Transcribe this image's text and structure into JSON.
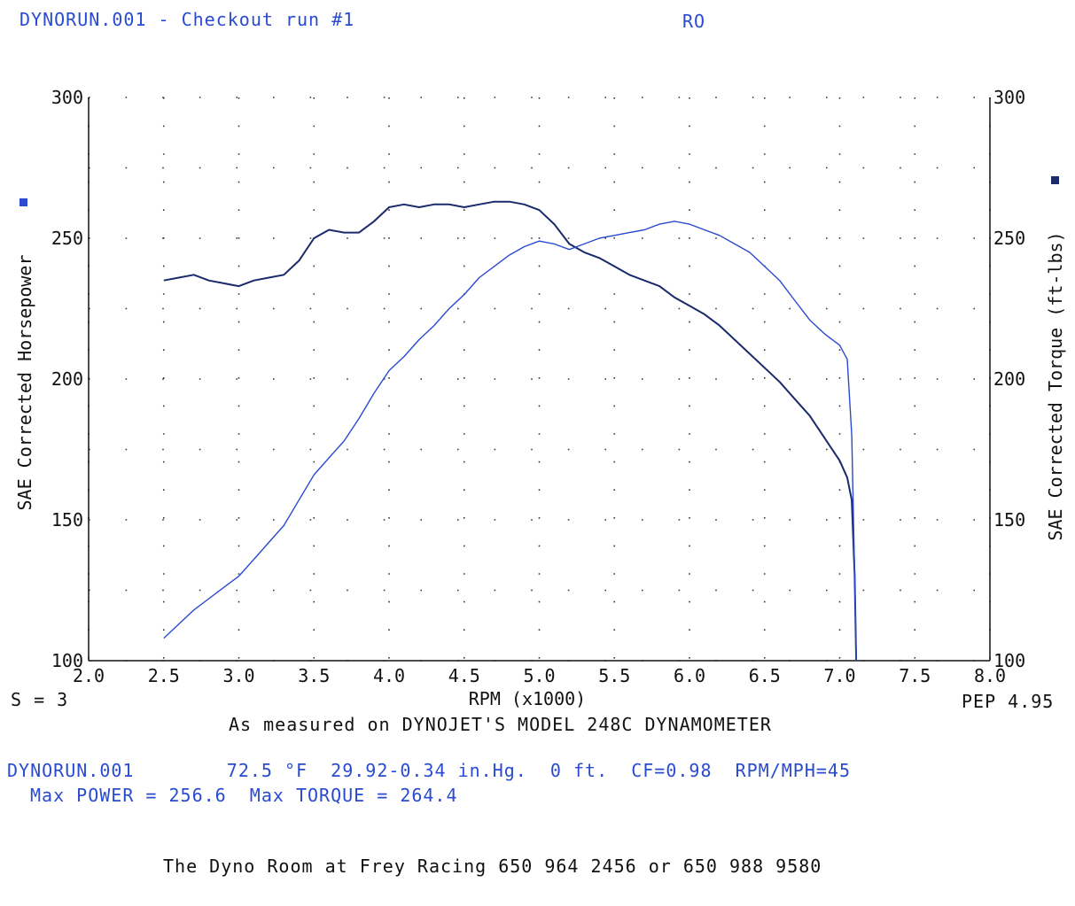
{
  "header": {
    "run_title": "DYNORUN.001 - Checkout run #1",
    "operator_code": "RO"
  },
  "colors": {
    "header_text": "#2a4bd0",
    "torque_line": "#1a2a6b",
    "horsepower_line": "#2a4bd0"
  },
  "chart_data": {
    "type": "line",
    "xlabel": "RPM (x1000)",
    "ylabel_left": "SAE Corrected Horsepower",
    "ylabel_right": "SAE Corrected Torque (ft-lbs)",
    "xlim": [
      2.0,
      8.0
    ],
    "ylim": [
      100,
      300
    ],
    "x_ticks": [
      "2.0",
      "2.5",
      "3.0",
      "3.5",
      "4.0",
      "4.5",
      "5.0",
      "5.5",
      "6.0",
      "6.5",
      "7.0",
      "7.5",
      "8.0"
    ],
    "y_ticks_left": [
      "100",
      "150",
      "200",
      "250",
      "300"
    ],
    "y_ticks_right": [
      "100",
      "150",
      "200",
      "250",
      "300"
    ],
    "grid": true,
    "series": [
      {
        "key": "torque",
        "axis": "right",
        "color": "#1a2a6b",
        "points": [
          [
            2.5,
            235
          ],
          [
            2.6,
            236
          ],
          [
            2.7,
            237
          ],
          [
            2.8,
            235
          ],
          [
            2.9,
            234
          ],
          [
            3.0,
            233
          ],
          [
            3.1,
            235
          ],
          [
            3.2,
            236
          ],
          [
            3.3,
            237
          ],
          [
            3.4,
            242
          ],
          [
            3.5,
            250
          ],
          [
            3.6,
            253
          ],
          [
            3.7,
            252
          ],
          [
            3.8,
            252
          ],
          [
            3.9,
            256
          ],
          [
            4.0,
            261
          ],
          [
            4.1,
            262
          ],
          [
            4.2,
            261
          ],
          [
            4.3,
            262
          ],
          [
            4.4,
            262
          ],
          [
            4.5,
            261
          ],
          [
            4.6,
            262
          ],
          [
            4.7,
            263
          ],
          [
            4.8,
            263
          ],
          [
            4.9,
            262
          ],
          [
            5.0,
            260
          ],
          [
            5.1,
            255
          ],
          [
            5.2,
            248
          ],
          [
            5.3,
            245
          ],
          [
            5.4,
            243
          ],
          [
            5.5,
            240
          ],
          [
            5.6,
            237
          ],
          [
            5.7,
            235
          ],
          [
            5.8,
            233
          ],
          [
            5.9,
            229
          ],
          [
            6.0,
            226
          ],
          [
            6.1,
            223
          ],
          [
            6.2,
            219
          ],
          [
            6.3,
            214
          ],
          [
            6.4,
            209
          ],
          [
            6.5,
            204
          ],
          [
            6.6,
            199
          ],
          [
            6.7,
            193
          ],
          [
            6.8,
            187
          ],
          [
            6.9,
            179
          ],
          [
            7.0,
            171
          ],
          [
            7.05,
            165
          ],
          [
            7.08,
            157
          ],
          [
            7.1,
            130
          ],
          [
            7.11,
            100
          ]
        ]
      },
      {
        "key": "horsepower",
        "axis": "left",
        "color": "#2a4bd0",
        "points": [
          [
            2.5,
            108
          ],
          [
            2.6,
            113
          ],
          [
            2.7,
            118
          ],
          [
            2.8,
            122
          ],
          [
            2.9,
            126
          ],
          [
            3.0,
            130
          ],
          [
            3.1,
            136
          ],
          [
            3.2,
            142
          ],
          [
            3.3,
            148
          ],
          [
            3.4,
            157
          ],
          [
            3.5,
            166
          ],
          [
            3.6,
            172
          ],
          [
            3.7,
            178
          ],
          [
            3.8,
            186
          ],
          [
            3.9,
            195
          ],
          [
            4.0,
            203
          ],
          [
            4.1,
            208
          ],
          [
            4.2,
            214
          ],
          [
            4.3,
            219
          ],
          [
            4.4,
            225
          ],
          [
            4.5,
            230
          ],
          [
            4.6,
            236
          ],
          [
            4.7,
            240
          ],
          [
            4.8,
            244
          ],
          [
            4.9,
            247
          ],
          [
            5.0,
            249
          ],
          [
            5.1,
            248
          ],
          [
            5.2,
            246
          ],
          [
            5.3,
            248
          ],
          [
            5.4,
            250
          ],
          [
            5.5,
            251
          ],
          [
            5.6,
            252
          ],
          [
            5.7,
            253
          ],
          [
            5.8,
            255
          ],
          [
            5.9,
            256
          ],
          [
            6.0,
            255
          ],
          [
            6.1,
            253
          ],
          [
            6.2,
            251
          ],
          [
            6.3,
            248
          ],
          [
            6.4,
            245
          ],
          [
            6.5,
            240
          ],
          [
            6.6,
            235
          ],
          [
            6.7,
            228
          ],
          [
            6.8,
            221
          ],
          [
            6.9,
            216
          ],
          [
            7.0,
            212
          ],
          [
            7.05,
            207
          ],
          [
            7.08,
            180
          ],
          [
            7.1,
            130
          ],
          [
            7.11,
            100
          ]
        ]
      }
    ]
  },
  "footer": {
    "smoothing": "S = 3",
    "pep": "PEP 4.95",
    "measured_on": "As measured on DYNOJET'S MODEL 248C DYNAMOMETER",
    "conditions": "DYNORUN.001        72.5 °F  29.92-0.34 in.Hg.  0 ft.  CF=0.98  RPM/MPH=45",
    "max_values": "Max POWER = 256.6  Max TORQUE = 264.4",
    "shop": "The Dyno Room at Frey Racing 650 964 2456 or 650 988 9580"
  }
}
